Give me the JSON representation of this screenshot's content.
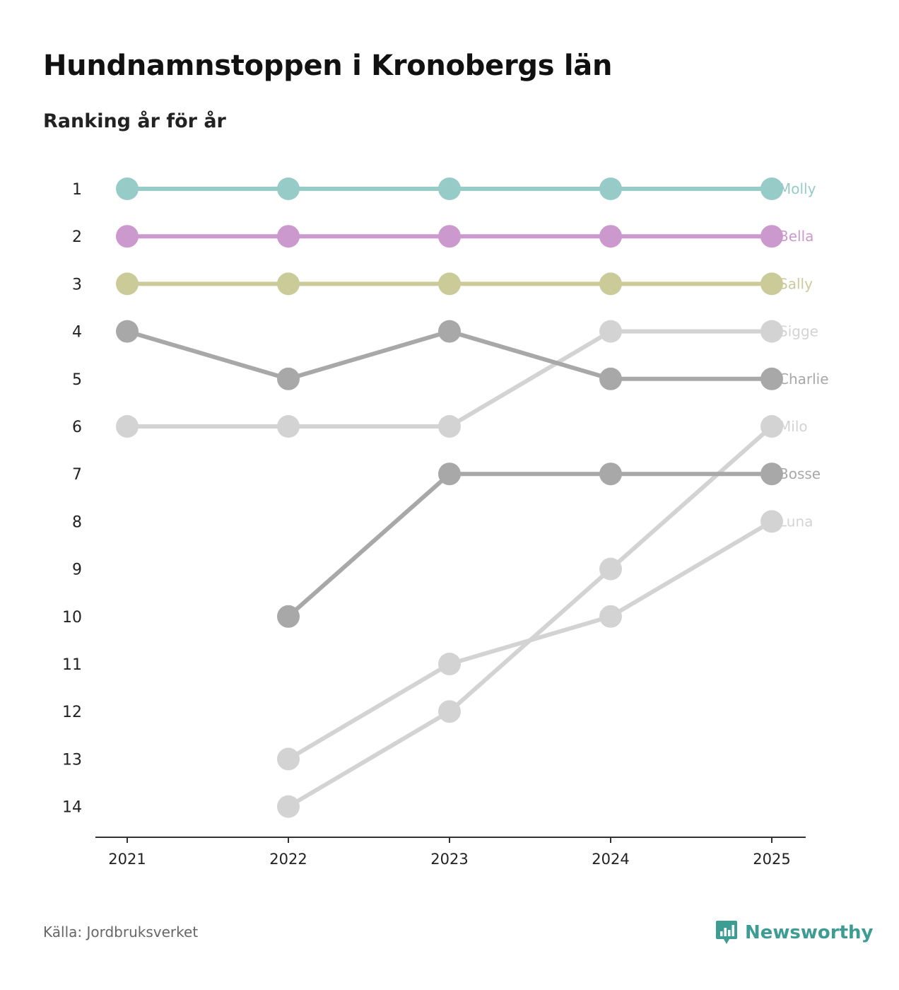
{
  "title": "Hundnamnstoppen i Kronobergs län",
  "subtitle": "Ranking år för år",
  "source": "Källa: Jordbruksverket",
  "brand": "Newsworthy",
  "chart_data": {
    "type": "line",
    "title": "Hundnamnstoppen i Kronobergs län",
    "subtitle": "Ranking år för år",
    "xlabel": "",
    "ylabel": "",
    "x": [
      "2021",
      "2022",
      "2023",
      "2024",
      "2025"
    ],
    "y_ticks": [
      "1",
      "2",
      "3",
      "4",
      "5",
      "6",
      "7",
      "8",
      "9",
      "10",
      "11",
      "12",
      "13",
      "14"
    ],
    "ylim": [
      1,
      14
    ],
    "y_inverted": true,
    "grid": false,
    "series": [
      {
        "name": "Molly",
        "color": "#96cbc8",
        "values": [
          1,
          1,
          1,
          1,
          1
        ]
      },
      {
        "name": "Bella",
        "color": "#cb99cd",
        "values": [
          2,
          2,
          2,
          2,
          2
        ]
      },
      {
        "name": "Sally",
        "color": "#cbcb99",
        "values": [
          3,
          3,
          3,
          3,
          3
        ]
      },
      {
        "name": "Sigge",
        "color": "#d3d3d3",
        "values": [
          6,
          6,
          6,
          4,
          4
        ]
      },
      {
        "name": "Charlie",
        "color": "#a8a8a8",
        "values": [
          4,
          5,
          4,
          5,
          5
        ]
      },
      {
        "name": "Milo",
        "color": "#d3d3d3",
        "values": [
          null,
          14,
          12,
          9,
          6
        ]
      },
      {
        "name": "Bosse",
        "color": "#a8a8a8",
        "values": [
          null,
          10,
          7,
          7,
          7
        ]
      },
      {
        "name": "Luna",
        "color": "#d3d3d3",
        "values": [
          null,
          13,
          11,
          10,
          8
        ]
      }
    ]
  }
}
